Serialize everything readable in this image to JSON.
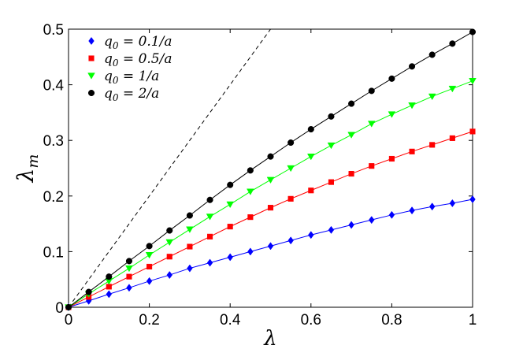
{
  "chart_data": {
    "type": "line",
    "title": "",
    "xlabel": "λ",
    "ylabel_base": "λ",
    "ylabel_sub": "m",
    "xlim": [
      0,
      1
    ],
    "ylim": [
      0,
      0.5
    ],
    "x_ticks": [
      0,
      0.2,
      0.4,
      0.6,
      0.8,
      1
    ],
    "x_tick_labels": [
      "0",
      "0.2",
      "0.4",
      "0.6",
      "0.8",
      "1"
    ],
    "y_ticks": [
      0,
      0.1,
      0.2,
      0.3,
      0.4,
      0.5
    ],
    "y_tick_labels": [
      "0",
      "0.1",
      "0.2",
      "0.3",
      "0.4",
      "0.5"
    ],
    "grid": false,
    "legend_position": "top-left",
    "x": [
      0,
      0.05,
      0.1,
      0.15,
      0.2,
      0.25,
      0.3,
      0.35,
      0.4,
      0.45,
      0.5,
      0.55,
      0.6,
      0.65,
      0.7,
      0.75,
      0.8,
      0.85,
      0.9,
      0.95,
      1
    ],
    "reference_line": {
      "style": "dashed",
      "color": "#000000",
      "slope": 1
    },
    "series": [
      {
        "name": "q0 = 0.1/a",
        "legend_base": "q",
        "legend_sub": "0",
        "legend_rest": " = 0.1/a",
        "color": "#0000ff",
        "marker": "diamond",
        "values": [
          0,
          0.0115,
          0.0235,
          0.035,
          0.047,
          0.058,
          0.07,
          0.08,
          0.09,
          0.1,
          0.11,
          0.12,
          0.13,
          0.139,
          0.148,
          0.157,
          0.166,
          0.174,
          0.181,
          0.187,
          0.194
        ]
      },
      {
        "name": "q0 = 0.5/a",
        "legend_base": "q",
        "legend_sub": "0",
        "legend_rest": " = 0.5/a",
        "color": "#ff0000",
        "marker": "square",
        "values": [
          0,
          0.0185,
          0.037,
          0.055,
          0.073,
          0.091,
          0.109,
          0.127,
          0.145,
          0.162,
          0.179,
          0.195,
          0.21,
          0.225,
          0.24,
          0.254,
          0.267,
          0.28,
          0.292,
          0.304,
          0.316
        ]
      },
      {
        "name": "q0 = 1/a",
        "legend_base": "q",
        "legend_sub": "0",
        "legend_rest": " = 1/a",
        "color": "#00ff00",
        "marker": "triangle-down",
        "values": [
          0,
          0.024,
          0.047,
          0.07,
          0.094,
          0.117,
          0.14,
          0.163,
          0.185,
          0.208,
          0.229,
          0.25,
          0.271,
          0.291,
          0.31,
          0.33,
          0.347,
          0.363,
          0.379,
          0.393,
          0.407
        ]
      },
      {
        "name": "q0 = 2/a",
        "legend_base": "q",
        "legend_sub": "0",
        "legend_rest": " = 2/a",
        "color": "#000000",
        "marker": "circle",
        "values": [
          0,
          0.0275,
          0.055,
          0.083,
          0.11,
          0.138,
          0.165,
          0.193,
          0.22,
          0.246,
          0.271,
          0.296,
          0.32,
          0.343,
          0.366,
          0.389,
          0.411,
          0.433,
          0.454,
          0.474,
          0.495
        ]
      }
    ]
  }
}
